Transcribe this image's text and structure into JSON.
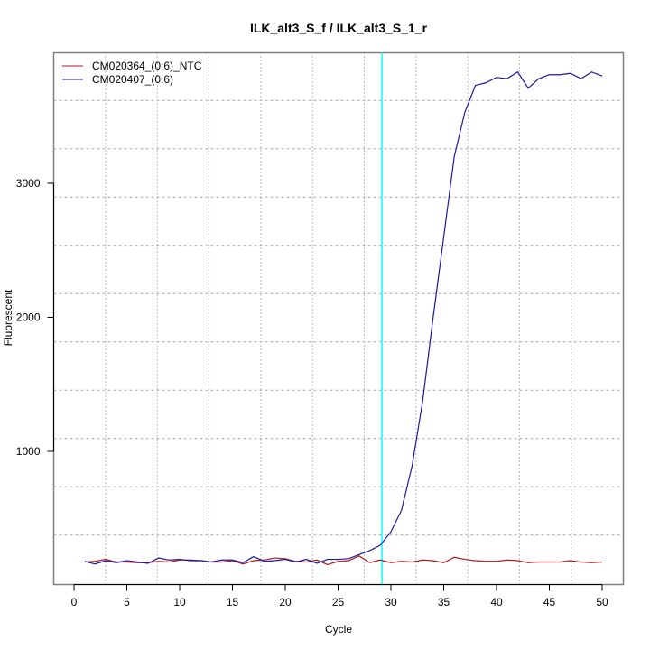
{
  "chart_data": {
    "type": "line",
    "title": "ILK_alt3_S_f / ILK_alt3_S_1_r",
    "xlabel": "Cycle",
    "ylabel": "Fluorescent",
    "xlim": [
      -1.9,
      52
    ],
    "ylim": [
      0,
      3950
    ],
    "xticks": [
      0,
      5,
      10,
      15,
      20,
      25,
      30,
      35,
      40,
      45,
      50
    ],
    "yticks": [
      1000,
      2000,
      3000
    ],
    "grid": true,
    "legend_position": "top-left",
    "threshold_cycle": 29.15,
    "threshold_color": "#00ffff",
    "x": [
      1,
      2,
      3,
      4,
      5,
      6,
      7,
      8,
      9,
      10,
      11,
      12,
      13,
      14,
      15,
      16,
      17,
      18,
      19,
      20,
      21,
      22,
      23,
      24,
      25,
      26,
      27,
      28,
      29,
      30,
      31,
      32,
      33,
      34,
      35,
      36,
      37,
      38,
      39,
      40,
      41,
      42,
      43,
      44,
      45,
      46,
      47,
      48,
      49,
      50
    ],
    "series": [
      {
        "name": "CM020364_(0:6)_NTC",
        "color": "#b01c1c",
        "values": [
          175,
          180,
          195,
          175,
          175,
          170,
          170,
          180,
          175,
          190,
          190,
          185,
          175,
          175,
          185,
          160,
          185,
          190,
          205,
          200,
          180,
          175,
          190,
          155,
          180,
          185,
          220,
          170,
          190,
          170,
          180,
          175,
          190,
          185,
          170,
          210,
          195,
          185,
          180,
          180,
          190,
          185,
          170,
          175,
          175,
          175,
          185,
          175,
          170,
          175
        ]
      },
      {
        "name": "CM020407_(0:6)",
        "color": "#1a1a9c",
        "values": [
          180,
          160,
          185,
          170,
          185,
          175,
          165,
          205,
          190,
          195,
          185,
          185,
          175,
          190,
          190,
          170,
          215,
          180,
          185,
          195,
          175,
          195,
          165,
          195,
          195,
          200,
          230,
          260,
          300,
          400,
          560,
          890,
          1370,
          2000,
          2600,
          3200,
          3530,
          3730,
          3750,
          3790,
          3780,
          3830,
          3710,
          3780,
          3810,
          3810,
          3820,
          3780,
          3830,
          3800
        ]
      }
    ]
  }
}
